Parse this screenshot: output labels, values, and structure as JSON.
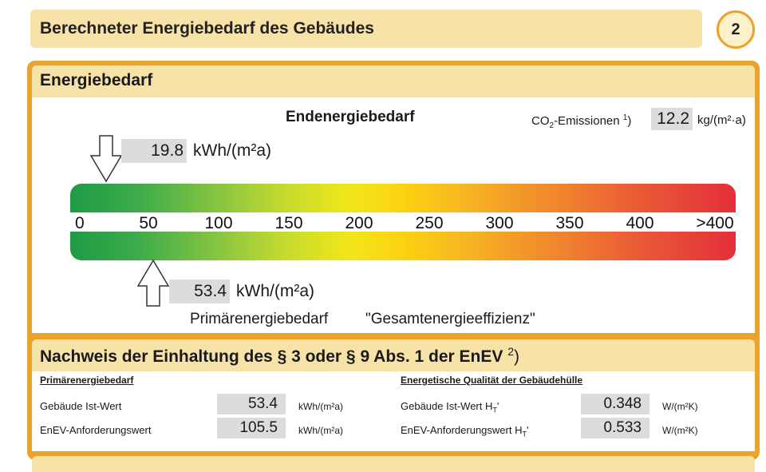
{
  "header": {
    "title": "Berechneter Energiebedarf des Gebäudes",
    "page_number": "2"
  },
  "energiebedarf": {
    "title": "Energiebedarf",
    "endenergie_label": "Endenergiebedarf",
    "co2_label_prefix": "CO",
    "co2_label_sub": "2",
    "co2_label_suffix": "-Emissionen ",
    "co2_footnote": "1",
    "co2_value": "12.2",
    "co2_unit": "kg/(m²·a)",
    "endenergie_value": "19.8",
    "endenergie_unit": "kWh/(m²a)",
    "endenergie_scale_value": 19.8,
    "primaer_value": "53.4",
    "primaer_unit": "kWh/(m²a)",
    "primaer_scale_value": 53.4,
    "primaer_label": "Primärenergiebedarf",
    "gesamt_label": "\"Gesamtenergieeffizienz\"",
    "scale_labels": [
      "0",
      "50",
      "100",
      "150",
      "200",
      "250",
      "300",
      "350",
      "400",
      ">400"
    ],
    "scale_max": 400,
    "colors": {
      "accent_orange": "#eba32c",
      "section_beige": "#f7e2a8",
      "value_gray": "#dcdcdc",
      "bar_green": "#1f9b45",
      "bar_yellow": "#f2e61a",
      "bar_red": "#e32f3a"
    }
  },
  "nachweis": {
    "title": "Nachweis der Einhaltung des § 3 oder § 9 Abs. 1 der EnEV ",
    "footnote": "2",
    "left": {
      "heading": "Primärenergiebedarf",
      "rows": [
        {
          "label": "Gebäude Ist-Wert",
          "value": "53.4",
          "unit": "kWh/(m²a)"
        },
        {
          "label": "EnEV-Anforderungswert",
          "value": "105.5",
          "unit": "kWh/(m²a)"
        }
      ]
    },
    "right": {
      "heading": "Energetische Qualität der Gebäudehülle",
      "rows": [
        {
          "label": "Gebäude Ist-Wert H",
          "sub": "T",
          "value": "0.348",
          "unit": "W/(m²K)"
        },
        {
          "label": "EnEV-Anforderungswert H",
          "sub": "T",
          "value": "0.533",
          "unit": "W/(m²K)"
        }
      ]
    }
  }
}
